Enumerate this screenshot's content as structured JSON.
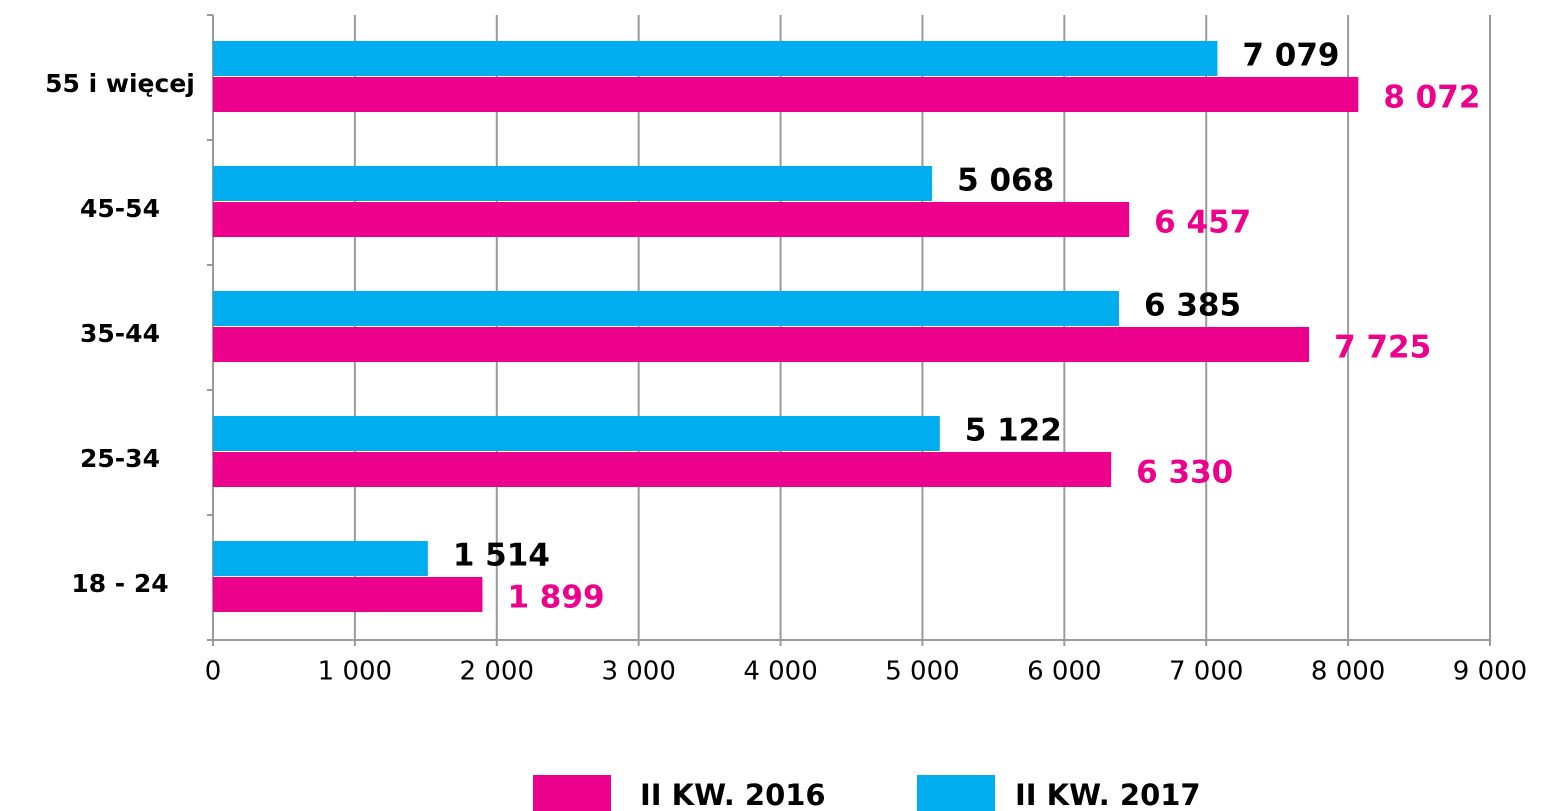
{
  "chart_data": {
    "type": "bar",
    "orientation": "horizontal",
    "categories": [
      "18 - 24",
      "25-34",
      "35-44",
      "45-54",
      "55 i więcej"
    ],
    "series": [
      {
        "name": "II KW. 2016",
        "color": "#EC008C",
        "values": [
          1899,
          6330,
          7725,
          6457,
          8072
        ],
        "value_labels": [
          "1 899",
          "6 330",
          "7 725",
          "6 457",
          "8 072"
        ],
        "label_color": "#EC008C"
      },
      {
        "name": "II KW. 2017",
        "color": "#00AEEF",
        "values": [
          1514,
          5122,
          6385,
          5068,
          7079
        ],
        "value_labels": [
          "1 514",
          "5 122",
          "6 385",
          "5 068",
          "7 079"
        ],
        "label_color": "#000000"
      }
    ],
    "xlim": [
      0,
      9000
    ],
    "xticks": [
      0,
      {
        "value": 1000,
        "label": "1 000"
      },
      {
        "value": 2000,
        "label": "2 000"
      },
      {
        "value": 3000,
        "label": "3 000"
      },
      {
        "value": 4000,
        "label": "4 000"
      },
      {
        "value": 5000,
        "label": "5 000"
      },
      {
        "value": 6000,
        "label": "6 000"
      },
      {
        "value": 7000,
        "label": "7 000"
      },
      {
        "value": 8000,
        "label": "8 000"
      },
      {
        "value": 9000,
        "label": "9 000"
      }
    ],
    "grid": true,
    "legend": "bottom"
  }
}
